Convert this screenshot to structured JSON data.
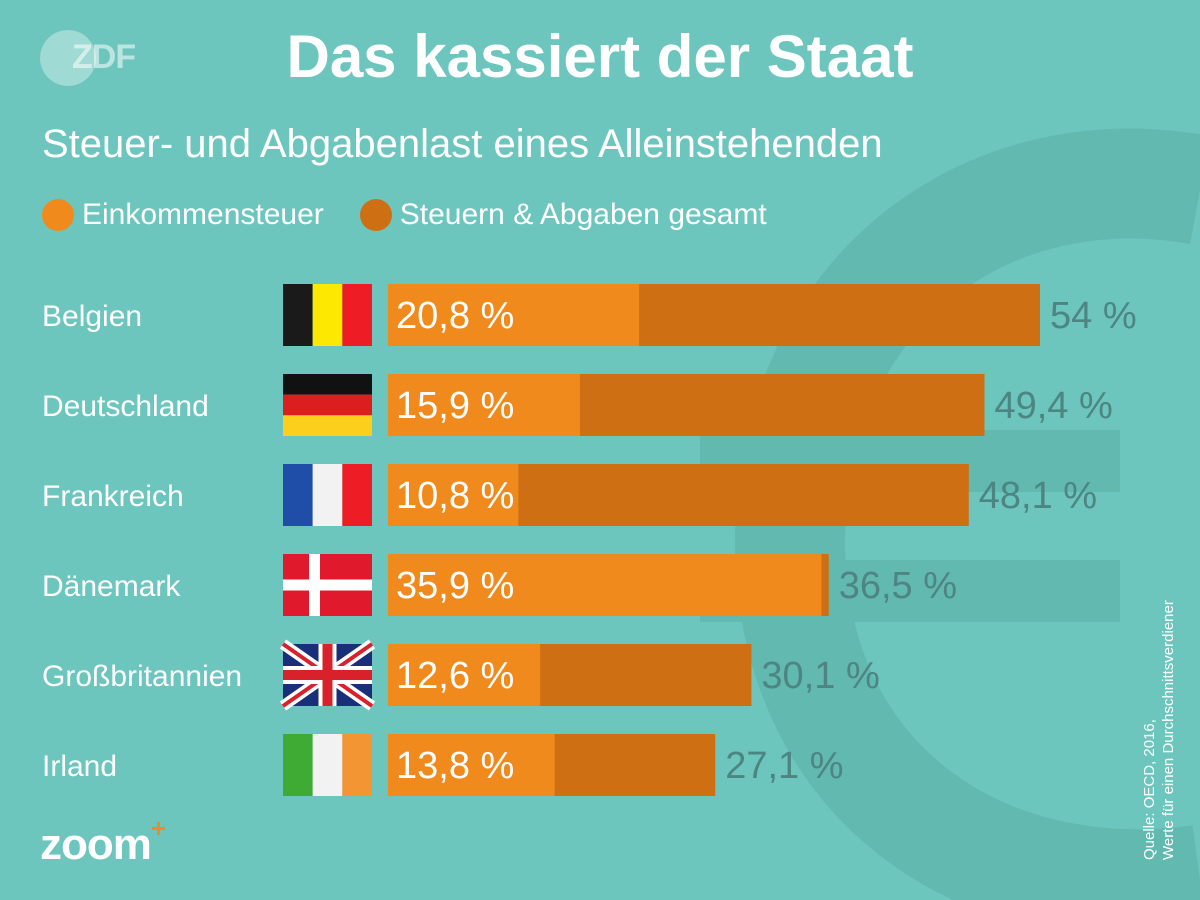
{
  "header": {
    "title": "Das kassiert der Staat",
    "subtitle": "Steuer- und Abgabenlast eines Alleinstehenden"
  },
  "branding": {
    "top_logo": "ZDF",
    "bottom_logo": "zoom",
    "bottom_logo_plus": "+"
  },
  "source": {
    "line1": "Quelle: OECD, 2016,",
    "line2": "Werte für einen Durchschnittsverdiener"
  },
  "colors": {
    "background": "#6cc6bd",
    "income_tax": "#f08a1c",
    "total": "#cd6f12",
    "outer_label": "#4d8582"
  },
  "chart_data": {
    "type": "bar",
    "orientation": "horizontal",
    "stacked_overlay": true,
    "title": "Das kassiert der Staat",
    "subtitle": "Steuer- und Abgabenlast eines Alleinstehenden",
    "categories": [
      "Belgien",
      "Deutschland",
      "Frankreich",
      "Dänemark",
      "Großbritannien",
      "Irland"
    ],
    "flags": [
      "be-flag-icon",
      "de-flag-icon",
      "fr-flag-icon",
      "dk-flag-icon",
      "gb-flag-icon",
      "ie-flag-icon"
    ],
    "series": [
      {
        "name": "Einkommensteuer",
        "color": "#f08a1c",
        "values": [
          20.8,
          15.9,
          10.8,
          35.9,
          12.6,
          13.8
        ],
        "labels": [
          "20,8 %",
          "15,9 %",
          "10,8 %",
          "35,9 %",
          "12,6 %",
          "13,8 %"
        ]
      },
      {
        "name": "Steuern & Abgaben gesamt",
        "color": "#cd6f12",
        "values": [
          54,
          49.4,
          48.1,
          36.5,
          30.1,
          27.1
        ],
        "labels": [
          "54 %",
          "49,4 %",
          "48,1 %",
          "36,5 %",
          "30,1 %",
          "27,1 %"
        ]
      }
    ],
    "xlim": [
      0,
      54
    ],
    "grid": false,
    "legend_position": "top-left"
  }
}
